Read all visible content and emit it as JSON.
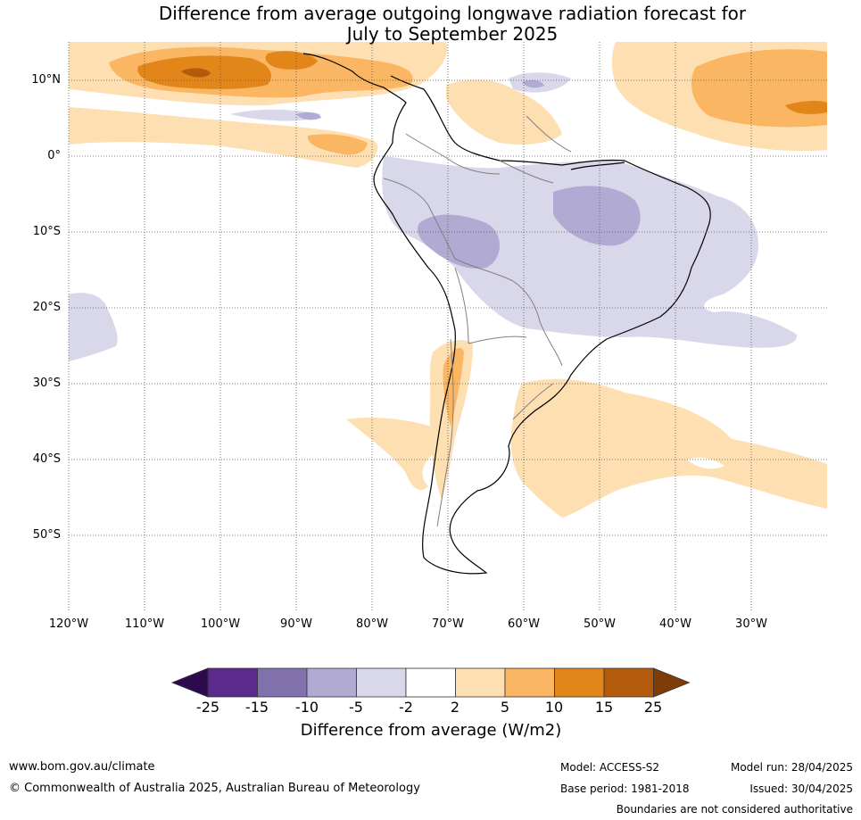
{
  "title_line1": "Difference from average outgoing longwave radiation forecast for",
  "title_line2": "July to September 2025",
  "lat_labels": [
    "10°N",
    "0°",
    "10°S",
    "20°S",
    "30°S",
    "40°S",
    "50°S"
  ],
  "lon_labels": [
    "120°W",
    "110°W",
    "100°W",
    "90°W",
    "80°W",
    "70°W",
    "60°W",
    "50°W",
    "40°W",
    "30°W"
  ],
  "colorbar": {
    "ticks": [
      "-25",
      "-15",
      "-10",
      "-5",
      "-2",
      "2",
      "5",
      "10",
      "15",
      "25"
    ],
    "colors": [
      "#2d0a4e",
      "#5b2a8c",
      "#8172ad",
      "#b1aad2",
      "#d9d8ea",
      "#ffffff",
      "#fddfb2",
      "#fab662",
      "#e3861a",
      "#b35a0c",
      "#7f3b08"
    ],
    "label": "Difference from average (W/m2)"
  },
  "footer": {
    "url": "www.bom.gov.au/climate",
    "copyright": "© Commonwealth of Australia 2025, Australian Bureau of Meteorology",
    "model": "Model: ACCESS-S2",
    "base_period": "Base period: 1981-2018",
    "model_run": "Model run: 28/04/2025",
    "issued": "Issued: 30/04/2025",
    "disclaimer": "Boundaries are not considered authoritative"
  }
}
